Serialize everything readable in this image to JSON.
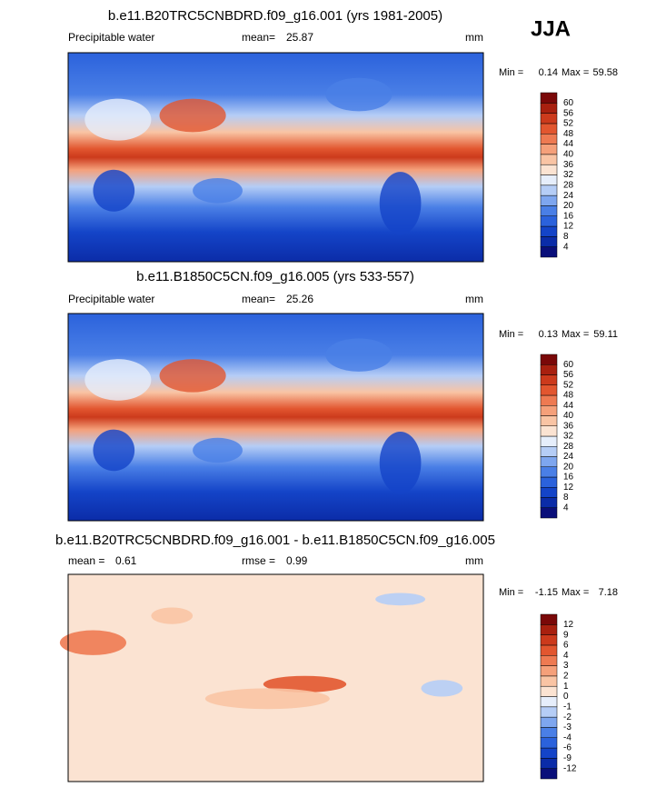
{
  "badge": "JJA",
  "panels": [
    {
      "title": "b.e11.B20TRC5CNBDRD.f09_g16.001 (yrs 1981-2005)",
      "left_label": "Precipitable water",
      "stat_label": "mean=",
      "stat": 25.87,
      "units": "mm",
      "min_label": "Min =",
      "min": 0.14,
      "max_label": "Max =",
      "max": 59.58,
      "levels": [
        4,
        8,
        12,
        16,
        20,
        24,
        28,
        32,
        36,
        40,
        44,
        48,
        52,
        56,
        60
      ],
      "colors": [
        "#0a0f7a",
        "#0b2ca8",
        "#1444c8",
        "#2b62dc",
        "#4a7fe6",
        "#7ea6ef",
        "#b5cdf6",
        "#e6eefb",
        "#fbe3d2",
        "#f9c4a4",
        "#f5a07a",
        "#ee7a52",
        "#e2562f",
        "#cc3a1c",
        "#a8200f",
        "#7a0808"
      ]
    },
    {
      "title": "b.e11.B1850C5CN.f09_g16.005 (yrs 533-557)",
      "left_label": "Precipitable water",
      "stat_label": "mean=",
      "stat": 25.26,
      "units": "mm",
      "min_label": "Min =",
      "min": 0.13,
      "max_label": "Max =",
      "max": 59.11,
      "levels": [
        4,
        8,
        12,
        16,
        20,
        24,
        28,
        32,
        36,
        40,
        44,
        48,
        52,
        56,
        60
      ],
      "colors": [
        "#0a0f7a",
        "#0b2ca8",
        "#1444c8",
        "#2b62dc",
        "#4a7fe6",
        "#7ea6ef",
        "#b5cdf6",
        "#e6eefb",
        "#fbe3d2",
        "#f9c4a4",
        "#f5a07a",
        "#ee7a52",
        "#e2562f",
        "#cc3a1c",
        "#a8200f",
        "#7a0808"
      ]
    },
    {
      "title": "b.e11.B20TRC5CNBDRD.f09_g16.001 - b.e11.B1850C5CN.f09_g16.005",
      "left_label": "mean =",
      "left_value": 0.61,
      "stat_label": "rmse =",
      "stat": 0.99,
      "units": "mm",
      "min_label": "Min =",
      "min": -1.15,
      "max_label": "Max =",
      "max": 7.18,
      "levels": [
        -12,
        -9,
        -6,
        -4,
        -3,
        -2,
        -1,
        0,
        1,
        2,
        3,
        4,
        6,
        9,
        12
      ],
      "colors": [
        "#0a0f7a",
        "#0b2ca8",
        "#1444c8",
        "#2b62dc",
        "#4a7fe6",
        "#7ea6ef",
        "#b5cdf6",
        "#e6eefb",
        "#fbe3d2",
        "#f9c4a4",
        "#f5a07a",
        "#ee7a52",
        "#e2562f",
        "#cc3a1c",
        "#a8200f",
        "#7a0808"
      ]
    }
  ]
}
